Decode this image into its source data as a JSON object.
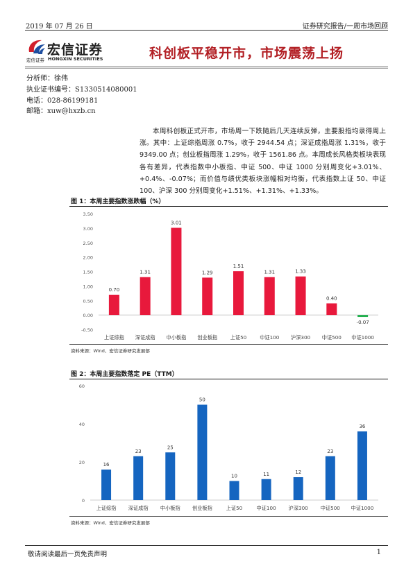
{
  "header": {
    "date": "2019 年 07 月 26 日",
    "report_type": "证券研究报告/一周市场回顾"
  },
  "logo": {
    "name_cn": "宏信证券",
    "sub_cn": "宏信证券",
    "name_en": "HONGXIN SECURITIES"
  },
  "title": "科创板平稳开市，市场震荡上扬",
  "analyst": {
    "name_label": "分析师：",
    "name": "徐伟",
    "cert_label": "执业证书编号：",
    "cert": "S1330514080001",
    "phone_label": "电话：",
    "phone": "028-86199181",
    "email_label": "邮箱：",
    "email": "xuw@hxzb.cn"
  },
  "summary": "本周科创板正式开市，市场周一下跌随后几天连续反弹，主要股指均录得周上涨。其中：上证综指周涨 0.7%，收于 2944.54 点；深证成指周涨 1.31%，收于 9349.00 点；创业板指周涨 1.29%，收于 1561.86 点。本周成长风格类板块表现各有差异，代表指数中小板指、中证 500、中证 1000 分别周变化+3.01%、+0.4%、-0.07%；而价值与绩优类板块涨幅相对均衡，代表指数上证 50、中证 100、沪深 300 分别周变化+1.51%、+1.31%、+1.33%。",
  "figure1": {
    "title": "图 1：本周主要指数涨跌幅（%）",
    "source": "资料来源：Wind、宏信证券研究发展部"
  },
  "figure2": {
    "title": "图 2：本周主要指数落定 PE（TTM）",
    "source": "资料来源：Wind、宏信证券研究发展部"
  },
  "chart_data": [
    {
      "type": "bar",
      "title": "图 1：本周主要指数涨跌幅（%）",
      "categories": [
        "上证综指",
        "深证成指",
        "中小板指",
        "创业板指",
        "上证50",
        "中证100",
        "沪深300",
        "中证500",
        "中证1000"
      ],
      "values": [
        0.7,
        1.31,
        3.01,
        1.29,
        1.51,
        1.31,
        1.33,
        0.4,
        -0.07
      ],
      "data_labels": [
        "0.70",
        "1.31",
        "3.01",
        "1.29",
        "1.51",
        "1.31",
        "1.33",
        "0.40",
        "-0.07"
      ],
      "ylim": [
        -0.5,
        3.5
      ],
      "yticks": [
        "-0.50",
        "0.00",
        "0.50",
        "1.00",
        "1.50",
        "2.00",
        "2.50",
        "3.00",
        "3.50"
      ],
      "grid": false,
      "colors": {
        "positive": "#e8193c",
        "negative": "#22b04e"
      }
    },
    {
      "type": "bar",
      "title": "图 2：本周主要指数落定 PE（TTM）",
      "categories": [
        "上证综指",
        "深证成指",
        "中小板指",
        "创业板指",
        "上证50",
        "中证100",
        "沪深300",
        "中证500",
        "中证1000"
      ],
      "values": [
        16,
        23,
        25,
        50,
        10,
        11,
        12,
        23,
        36
      ],
      "data_labels": [
        "16",
        "23",
        "25",
        "50",
        "10",
        "11",
        "12",
        "23",
        "36"
      ],
      "ylim": [
        0,
        60
      ],
      "yticks": [
        "0",
        "20",
        "40",
        "60"
      ],
      "grid": false,
      "colors": {
        "bar": "#1565c0"
      }
    }
  ],
  "footer": {
    "disclaimer": "敬请阅读最后一页免责声明",
    "page": "1"
  },
  "colors": {
    "title_red": "#b21f24",
    "logo_red": "#d21f2b",
    "logo_blue": "#1f4fa0"
  }
}
